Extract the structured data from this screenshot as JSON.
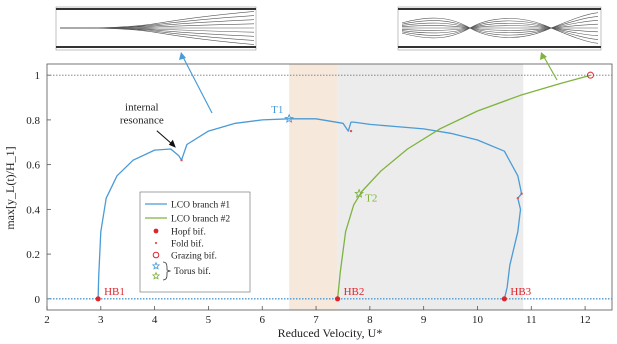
{
  "chart_data": {
    "type": "line",
    "xlabel": "Reduced Velocity, U*",
    "ylabel": "max[y_L(t)/H_1]",
    "xlim": [
      2,
      12.5
    ],
    "ylim": [
      -0.05,
      1.05
    ],
    "xticks": [
      "2",
      "3",
      "4",
      "5",
      "6",
      "7",
      "8",
      "9",
      "10",
      "11",
      "12"
    ],
    "yticks": [
      "0",
      "0.2",
      "0.4",
      "0.6",
      "0.8",
      "1"
    ],
    "grid": false,
    "legend_position": "center-left",
    "colors": {
      "branch1": "#4a9bd6",
      "branch2": "#7fb33f",
      "hopf": "#e0242c",
      "fold": "#e05050",
      "grazing": "#e0242c",
      "shade_orange": "#f6e4d6",
      "shade_grey": "#e9e9e9"
    },
    "shaded_regions": [
      {
        "x": [
          6.5,
          7.4
        ],
        "color": "orange"
      },
      {
        "x": [
          7.4,
          10.85
        ],
        "color": "grey"
      }
    ],
    "series": [
      {
        "name": "LCO branch #1",
        "x": [
          2.95,
          2.96,
          3.0,
          3.1,
          3.3,
          3.6,
          4.0,
          4.3,
          4.45,
          4.5,
          4.6,
          5.0,
          5.5,
          6.0,
          6.5,
          7.0,
          7.5,
          7.6,
          7.65,
          7.7,
          8.0,
          8.5,
          9.0,
          9.5,
          10.0,
          10.5,
          10.75,
          10.82,
          10.75,
          10.8,
          10.75,
          10.6,
          10.55,
          10.5
        ],
        "y": [
          0.0,
          0.1,
          0.3,
          0.45,
          0.55,
          0.62,
          0.665,
          0.67,
          0.64,
          0.62,
          0.69,
          0.75,
          0.785,
          0.8,
          0.805,
          0.805,
          0.785,
          0.75,
          0.79,
          0.79,
          0.78,
          0.77,
          0.76,
          0.74,
          0.71,
          0.66,
          0.55,
          0.47,
          0.45,
          0.4,
          0.3,
          0.15,
          0.05,
          0.0
        ]
      },
      {
        "name": "LCO branch #2",
        "x": [
          7.4,
          7.45,
          7.55,
          7.7,
          7.85,
          8.2,
          8.7,
          9.3,
          10.0,
          10.8,
          11.5,
          12.1
        ],
        "y": [
          0.0,
          0.12,
          0.3,
          0.42,
          0.48,
          0.57,
          0.67,
          0.76,
          0.84,
          0.91,
          0.96,
          1.0
        ]
      }
    ],
    "trivial_branch": {
      "x": [
        2,
        12.5
      ],
      "y": 0.0
    },
    "upper_bound": {
      "x": [
        2,
        12.5
      ],
      "y": 1.0
    },
    "points": [
      {
        "label": "HB1",
        "kind": "Hopf bif.",
        "x": 2.95,
        "y": 0.0
      },
      {
        "label": "HB2",
        "kind": "Hopf bif.",
        "x": 7.4,
        "y": 0.0
      },
      {
        "label": "HB3",
        "kind": "Hopf bif.",
        "x": 10.5,
        "y": 0.0
      },
      {
        "label": "T1",
        "kind": "Torus bif.",
        "x": 6.5,
        "y": 0.805
      },
      {
        "label": "T2",
        "kind": "Torus bif.",
        "x": 7.8,
        "y": 0.47
      },
      {
        "label": "",
        "kind": "Fold bif.",
        "x": 4.5,
        "y": 0.62
      },
      {
        "label": "",
        "kind": "Fold bif.",
        "x": 7.65,
        "y": 0.75
      },
      {
        "label": "",
        "kind": "Fold bif.",
        "x": 10.82,
        "y": 0.47
      },
      {
        "label": "",
        "kind": "Fold bif.",
        "x": 10.75,
        "y": 0.45
      },
      {
        "label": "",
        "kind": "Grazing bif.",
        "x": 12.1,
        "y": 1.0
      }
    ],
    "annotations": [
      {
        "text_lines": [
          "internal",
          "resonance"
        ],
        "x": 4.45,
        "y": 0.68
      }
    ],
    "legend": [
      {
        "label": "LCO branch #1",
        "kind": "line",
        "color": "#4a9bd6"
      },
      {
        "label": "LCO branch #2",
        "kind": "line",
        "color": "#7fb33f"
      },
      {
        "label": "Hopf bif.",
        "kind": "dot",
        "color": "#e0242c"
      },
      {
        "label": "Fold bif.",
        "kind": "small-dot",
        "color": "#e05050"
      },
      {
        "label": "Grazing bif.",
        "kind": "circle",
        "color": "#e0242c"
      },
      {
        "label": "Torus bif.",
        "kind": "stars",
        "color": "#4a9bd6"
      }
    ]
  }
}
